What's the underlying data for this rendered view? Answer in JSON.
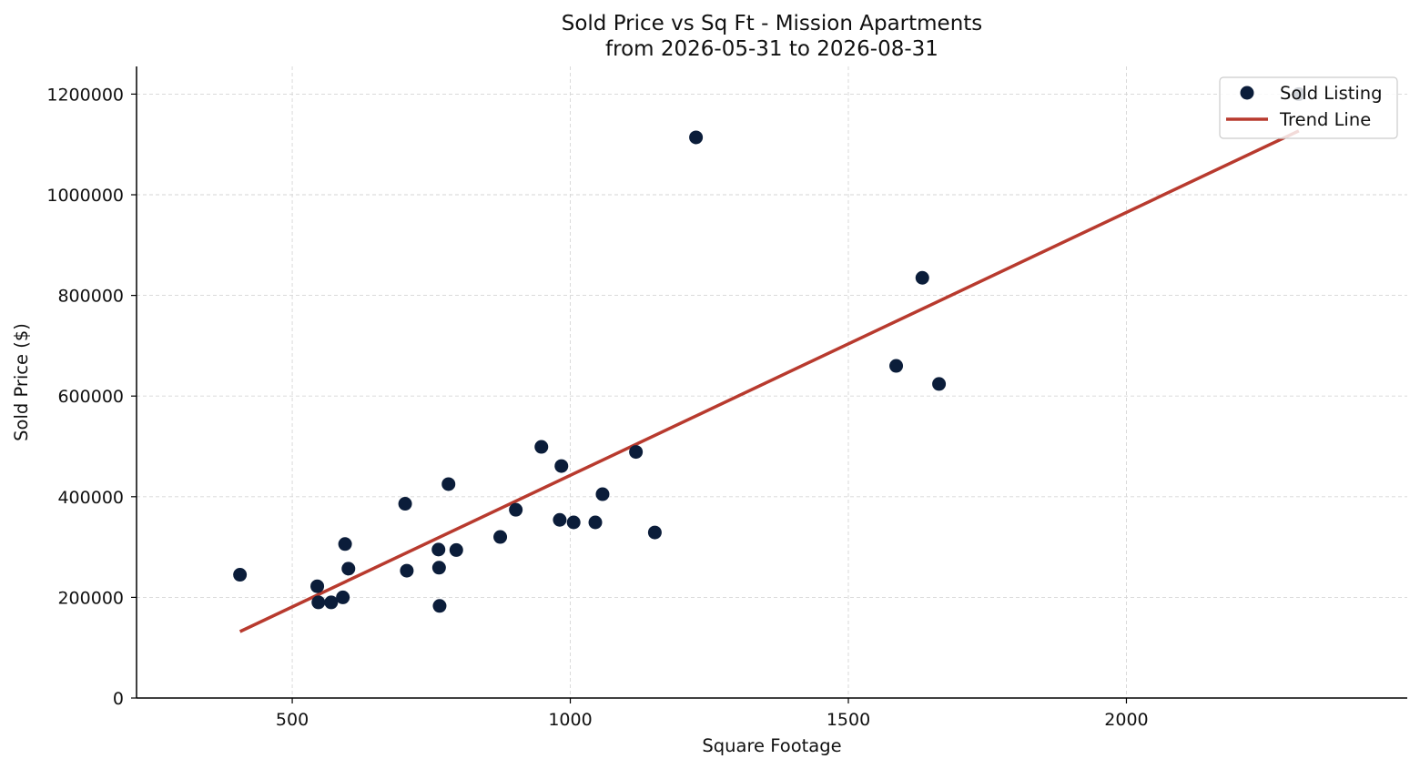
{
  "chart_data": {
    "type": "scatter",
    "title": "Sold Price vs Sq Ft - Mission Apartments",
    "subtitle": "from 2026-05-31 to 2026-08-31",
    "xlabel": "Square Footage",
    "ylabel": "Sold Price ($)",
    "xlim": [
      220,
      2505
    ],
    "ylim": [
      0,
      1255000
    ],
    "xticks": [
      500,
      1000,
      1500,
      2000
    ],
    "yticks": [
      0,
      200000,
      400000,
      600000,
      800000,
      1000000,
      1200000
    ],
    "xtick_labels": [
      "500",
      "1000",
      "1500",
      "2000"
    ],
    "ytick_labels": [
      "0",
      "200000",
      "400000",
      "600000",
      "800000",
      "1000000",
      "1200000"
    ],
    "grid": true,
    "legend_position": "top-right",
    "series": [
      {
        "name": "Sold Listing",
        "kind": "scatter",
        "color": "#0b1d3a",
        "points": [
          [
            406,
            245000
          ],
          [
            545,
            222000
          ],
          [
            547,
            190000
          ],
          [
            570,
            190000
          ],
          [
            591,
            200000
          ],
          [
            595,
            306000
          ],
          [
            601,
            257000
          ],
          [
            703,
            386000
          ],
          [
            706,
            253000
          ],
          [
            763,
            295000
          ],
          [
            764,
            259000
          ],
          [
            765,
            183000
          ],
          [
            781,
            425000
          ],
          [
            795,
            294000
          ],
          [
            874,
            320000
          ],
          [
            902,
            374000
          ],
          [
            948,
            499000
          ],
          [
            981,
            354000
          ],
          [
            984,
            461000
          ],
          [
            1006,
            349000
          ],
          [
            1045,
            349000
          ],
          [
            1058,
            405000
          ],
          [
            1118,
            489000
          ],
          [
            1152,
            329000
          ],
          [
            1226,
            1114000
          ],
          [
            1586,
            660000
          ],
          [
            1633,
            835000
          ],
          [
            1663,
            624000
          ],
          [
            2310,
            1200000
          ]
        ]
      },
      {
        "name": "Trend Line",
        "kind": "line",
        "color": "#b83a2e",
        "points": [
          [
            406,
            132000
          ],
          [
            2310,
            1127000
          ]
        ]
      }
    ]
  }
}
